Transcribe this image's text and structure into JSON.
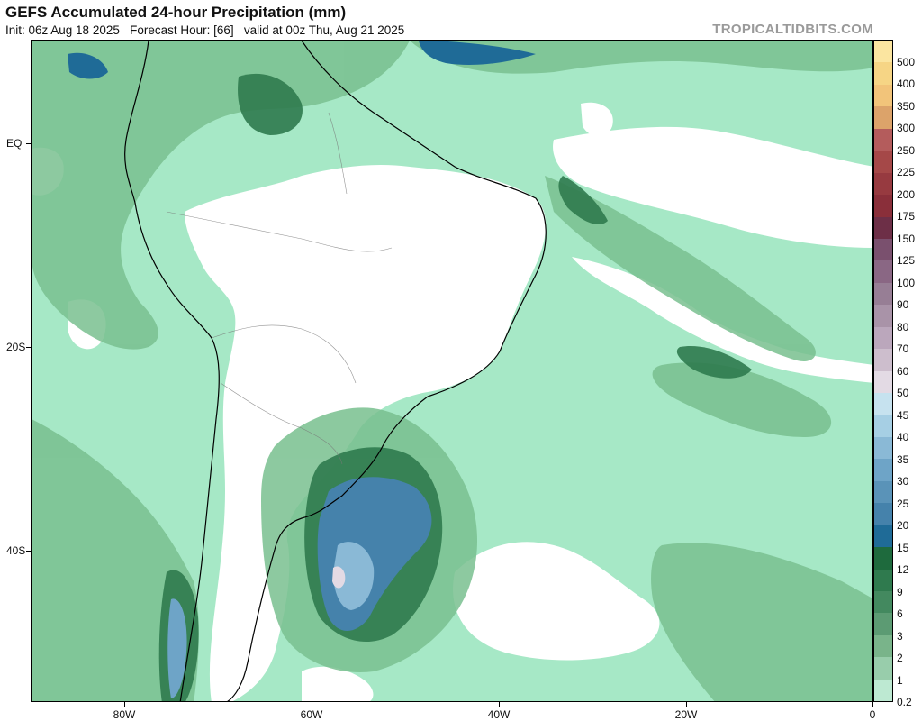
{
  "header": {
    "title": "GEFS Accumulated 24-hour Precipitation (mm)",
    "subtitle": "Init: 06z Aug 18 2025   Forecast Hour: [66]   valid at 00z Thu, Aug 21 2025",
    "watermark": "TROPICALTIDBITS.COM"
  },
  "axes": {
    "lat_labels": [
      "EQ",
      "20S",
      "40S"
    ],
    "lon_labels": [
      "80W",
      "60W",
      "40W",
      "20W",
      "0"
    ]
  },
  "colorbar": {
    "labels": [
      "500",
      "400",
      "350",
      "300",
      "250",
      "225",
      "200",
      "175",
      "150",
      "125",
      "100",
      "90",
      "80",
      "70",
      "60",
      "50",
      "45",
      "40",
      "35",
      "30",
      "25",
      "20",
      "15",
      "12",
      "9",
      "6",
      "3",
      "2",
      "1",
      "0.2"
    ],
    "colors": [
      "#fbe5a0",
      "#f6d585",
      "#f2c47a",
      "#dca36a",
      "#b45c5c",
      "#a54848",
      "#973a40",
      "#8a2f3a",
      "#6d2f47",
      "#7a506e",
      "#8a6784",
      "#977e95",
      "#a993a8",
      "#bba7bc",
      "#cdbecd",
      "#e3dae4",
      "#c6e2ef",
      "#a6cfe4",
      "#8ab9d6",
      "#6ea4c7",
      "#5a93b8",
      "#4582ab",
      "#1f6b97",
      "#1e6a3d",
      "#2f7a4e",
      "#43895f",
      "#5c9b73",
      "#79b48a",
      "#98cdab",
      "#bde9d2"
    ]
  },
  "map": {
    "background_color": "#a6e8c6",
    "region": "South America and South Atlantic"
  }
}
